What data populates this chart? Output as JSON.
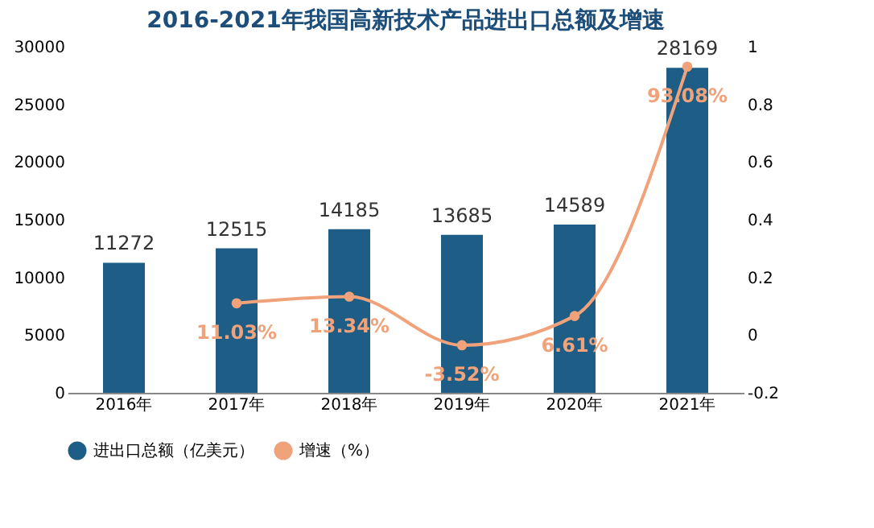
{
  "chart_data": {
    "type": "bar",
    "title": "2016-2021年我国高新技术产品进出口总额及增速",
    "categories": [
      "2016年",
      "2017年",
      "2018年",
      "2019年",
      "2020年",
      "2021年"
    ],
    "series": [
      {
        "name": "进出口总额（亿美元）",
        "color": "#1d5d86",
        "values": [
          11272,
          12515,
          14185,
          13685,
          14589,
          28169
        ],
        "value_labels": [
          "11272",
          "12515",
          "14185",
          "13685",
          "14589",
          "28169"
        ]
      },
      {
        "name": "增速（%）",
        "type": "line",
        "axis": "y2",
        "color": "#f0a27a",
        "values": [
          null,
          0.1103,
          0.1334,
          -0.0352,
          0.0661,
          0.9308
        ],
        "value_labels": [
          null,
          "11.03%",
          "13.34%",
          "-3.52%",
          "6.61%",
          "93.08%"
        ]
      }
    ],
    "ylim": [
      0,
      30000
    ],
    "yticks": [
      0,
      5000,
      10000,
      15000,
      20000,
      25000,
      30000
    ],
    "y2lim": [
      -0.2,
      1
    ],
    "y2ticks": [
      -0.2,
      0,
      0.2,
      0.4,
      0.6,
      0.8,
      1
    ],
    "legend": "bottom",
    "marker": "circle",
    "grid": false
  }
}
